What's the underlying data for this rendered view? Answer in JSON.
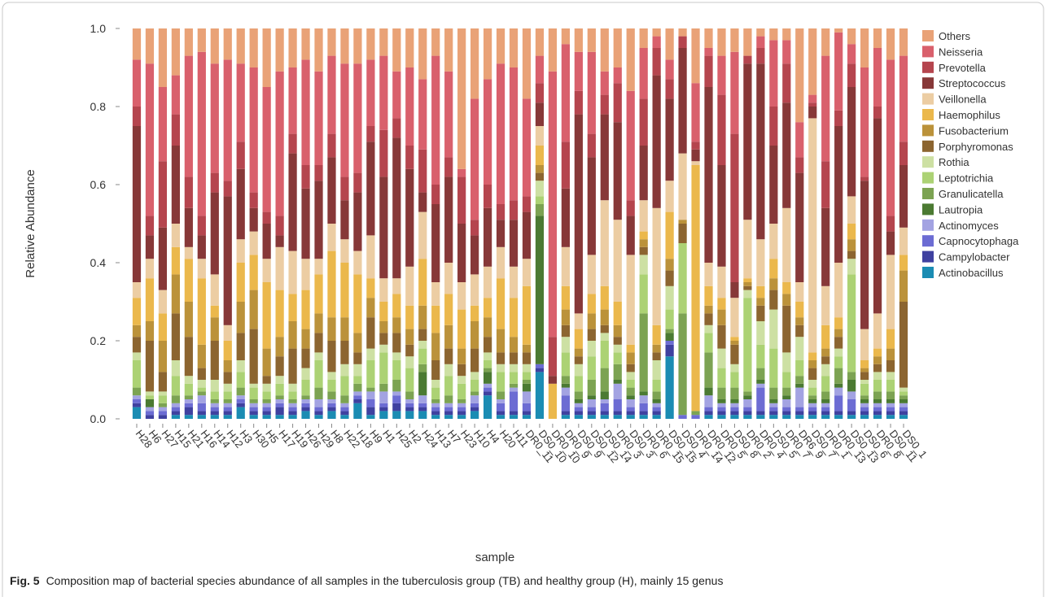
{
  "chart_data": {
    "type": "stacked_bar",
    "ylabel": "Relative Abundance",
    "xlabel": "sample",
    "figure_label": "Fig. 5",
    "caption": "Composition map of bacterial species abundance of all samples in the tuberculosis group (TB) and healthy group (H), mainly 15 genus",
    "ylim": [
      0,
      1
    ],
    "yticks": [
      {
        "value": 0,
        "label": "0.0"
      },
      {
        "value": 0.2,
        "label": "0.2"
      },
      {
        "value": 0.4,
        "label": "0.4"
      },
      {
        "value": 0.6,
        "label": "0.6"
      },
      {
        "value": 0.8,
        "label": "0.8"
      },
      {
        "value": 1,
        "label": "1.0"
      }
    ],
    "legend_position": "right",
    "categories": [
      "H28",
      "H6",
      "H27",
      "H15",
      "H21",
      "H16",
      "H14",
      "H12",
      "H3",
      "H30",
      "H5",
      "H17",
      "H19",
      "H26",
      "H29",
      "H8",
      "H22",
      "H18",
      "H9",
      "H1",
      "H25",
      "H2",
      "H24",
      "H13",
      "H7",
      "H23",
      "H10",
      "H4",
      "H20",
      "H11",
      "DR0_11",
      "DS0_10",
      "DR0_10",
      "DR0_9",
      "DS0_9",
      "DS0_12",
      "DS0_14",
      "DR0_3",
      "DS0_3",
      "DR0_6",
      "DR0_15",
      "DS0_15",
      "DS0_4",
      "DR0_14",
      "DR0_12",
      "DR0_5",
      "DS0_8",
      "DR0_2",
      "DR0_4",
      "DS0_5",
      "DR0_7",
      "DR6_9",
      "DS0_7",
      "DR0_1",
      "DR0_13",
      "DS0_13",
      "DS0_6",
      "DR0_8",
      "DS0_11",
      "DS0_1"
    ],
    "series": [
      {
        "name": "Others",
        "color": "#e9a277",
        "values": [
          0.08,
          0.09,
          0.15,
          0.12,
          0.07,
          0.06,
          0.09,
          0.08,
          0.09,
          0.1,
          0.15,
          0.11,
          0.1,
          0.08,
          0.11,
          0.07,
          0.09,
          0.09,
          0.08,
          0.07,
          0.11,
          0.1,
          0.13,
          0.07,
          0.11,
          0.36,
          0.18,
          0.13,
          0.09,
          0.1,
          0.18,
          0.07,
          0.11,
          0.04,
          0.06,
          0.06,
          0.11,
          0.1,
          0.16,
          0.05,
          0.02,
          0.08,
          0.02,
          0.14,
          0.05,
          0.07,
          0.06,
          0.07,
          0.02,
          0.03,
          0.03,
          0.24,
          0.17,
          0.07,
          0.01,
          0.04,
          0.1,
          0.05,
          0.08,
          0.07
        ]
      },
      {
        "name": "Neisseria",
        "color": "#d9606c",
        "values": [
          0.12,
          0.39,
          0.19,
          0.1,
          0.31,
          0.42,
          0.28,
          0.31,
          0.2,
          0.32,
          0.32,
          0.37,
          0.17,
          0.27,
          0.24,
          0.2,
          0.29,
          0.28,
          0.17,
          0.19,
          0.12,
          0.2,
          0.18,
          0.33,
          0.22,
          0.02,
          0.31,
          0.27,
          0.36,
          0.34,
          0.25,
          0.07,
          0.68,
          0.25,
          0.1,
          0.21,
          0.06,
          0.04,
          0.28,
          0.13,
          0.03,
          0.05,
          0,
          0.15,
          0.02,
          0.1,
          0.21,
          0,
          0.03,
          0.17,
          0.06,
          0.09,
          0.02,
          0.27,
          0.2,
          0.05,
          0.28,
          0.15,
          0.4,
          0.22
        ]
      },
      {
        "name": "Prevotella",
        "color": "#b5454e",
        "values": [
          0.05,
          0.05,
          0.17,
          0.08,
          0.08,
          0.05,
          0.05,
          0.04,
          0.07,
          0.04,
          0.03,
          0.05,
          0.05,
          0.06,
          0.04,
          0.06,
          0.06,
          0.05,
          0.04,
          0.12,
          0.05,
          0.06,
          0.11,
          0.05,
          0.05,
          0.12,
          0.04,
          0.06,
          0.04,
          0.05,
          0.04,
          0.05,
          0.1,
          0.12,
          0.06,
          0.06,
          0.05,
          0.1,
          0.04,
          0.12,
          0.07,
          0.05,
          0.03,
          0.02,
          0.08,
          0.18,
          0.38,
          0.02,
          0.04,
          0.1,
          0.1,
          0.04,
          0.01,
          0.12,
          0.04,
          0.06,
          0.01,
          0.03,
          0.04,
          0.06
        ]
      },
      {
        "name": "Streptococcus",
        "color": "#873838",
        "values": [
          0.4,
          0.06,
          0.16,
          0.2,
          0.1,
          0.06,
          0.21,
          0.33,
          0.18,
          0.06,
          0.09,
          0.03,
          0.25,
          0.18,
          0.2,
          0.17,
          0.1,
          0.15,
          0.24,
          0.26,
          0.36,
          0.25,
          0.05,
          0.2,
          0.22,
          0.15,
          0.1,
          0.15,
          0.07,
          0.12,
          0.12,
          0.06,
          0.02,
          0.15,
          0.51,
          0.25,
          0.22,
          0.25,
          0.1,
          0.14,
          0.34,
          0.21,
          0.27,
          0.03,
          0.45,
          0.26,
          0.04,
          0.4,
          0.45,
          0.2,
          0.27,
          0.28,
          0.03,
          0.2,
          0.35,
          0.28,
          0.38,
          0.5,
          0.06,
          0.16
        ]
      },
      {
        "name": "Veillonella",
        "color": "#eccda3",
        "values": [
          0.04,
          0.05,
          0.06,
          0.06,
          0.03,
          0.05,
          0.08,
          0.04,
          0.06,
          0.06,
          0.06,
          0.11,
          0.11,
          0.08,
          0.04,
          0.07,
          0.06,
          0.06,
          0.11,
          0.06,
          0.04,
          0.1,
          0.12,
          0.06,
          0.08,
          0.07,
          0.08,
          0.08,
          0.08,
          0.08,
          0.07,
          0.05,
          0,
          0.1,
          0.04,
          0.1,
          0.22,
          0.21,
          0.23,
          0.08,
          0.3,
          0.08,
          0.17,
          0.01,
          0.06,
          0.08,
          0.1,
          0.15,
          0.12,
          0.09,
          0.19,
          0.05,
          0.6,
          0.1,
          0.14,
          0.07,
          0.08,
          0.09,
          0.19,
          0.07
        ]
      },
      {
        "name": "Haemophilus",
        "color": "#ebb84c",
        "values": [
          0.07,
          0.11,
          0.07,
          0.07,
          0.11,
          0.17,
          0.03,
          0.05,
          0.1,
          0.09,
          0.17,
          0.12,
          0.07,
          0.1,
          0.1,
          0.17,
          0.14,
          0.15,
          0.05,
          0.05,
          0.06,
          0.06,
          0.12,
          0.07,
          0.08,
          0.1,
          0.04,
          0.05,
          0.13,
          0.1,
          0.15,
          0.05,
          0.09,
          0.06,
          0.05,
          0.05,
          0.06,
          0.06,
          0.02,
          0.02,
          0.05,
          0.12,
          0,
          0.63,
          0.05,
          0.03,
          0.01,
          0.01,
          0.03,
          0.05,
          0.03,
          0.04,
          0.02,
          0.06,
          0.03,
          0.04,
          0.02,
          0.02,
          0.05,
          0.04
        ]
      },
      {
        "name": "Fusobacterium",
        "color": "#bb923a",
        "values": [
          0.03,
          0.05,
          0.08,
          0.1,
          0.09,
          0.06,
          0.06,
          0.03,
          0.08,
          0.1,
          0.07,
          0.05,
          0.07,
          0.05,
          0.05,
          0.06,
          0.06,
          0.05,
          0.05,
          0.03,
          0.04,
          0.04,
          0.06,
          0.07,
          0.06,
          0.04,
          0.07,
          0.05,
          0.06,
          0.04,
          0.02,
          0.02,
          0,
          0.04,
          0.02,
          0.04,
          0.04,
          0.03,
          0.03,
          0.02,
          0.02,
          0.03,
          0.01,
          0,
          0.02,
          0.04,
          0.01,
          0.01,
          0.02,
          0.03,
          0.03,
          0.02,
          0.02,
          0.02,
          0.02,
          0.03,
          0.01,
          0.02,
          0.03,
          0.08
        ]
      },
      {
        "name": "Porphyromonas",
        "color": "#8c6530",
        "values": [
          0.04,
          0.13,
          0.05,
          0.12,
          0.1,
          0.03,
          0.1,
          0.03,
          0.07,
          0.14,
          0.02,
          0.05,
          0.09,
          0.05,
          0.05,
          0.08,
          0.06,
          0.03,
          0.08,
          0.03,
          0.05,
          0.03,
          0.03,
          0.05,
          0.04,
          0.03,
          0.06,
          0.04,
          0.03,
          0.03,
          0.03,
          0.02,
          0,
          0.03,
          0.02,
          0.03,
          0.02,
          0.02,
          0.02,
          0.02,
          0.02,
          0.04,
          0.05,
          0,
          0.03,
          0.06,
          0.05,
          0.01,
          0.04,
          0.05,
          0.12,
          0.03,
          0.03,
          0.02,
          0.03,
          0.02,
          0.02,
          0.02,
          0.03,
          0.22
        ]
      },
      {
        "name": "Rothia",
        "color": "#cde0a3",
        "values": [
          0.02,
          0.01,
          0.01,
          0.04,
          0.02,
          0.02,
          0.03,
          0.02,
          0.03,
          0.01,
          0.02,
          0.02,
          0.02,
          0.03,
          0.02,
          0.02,
          0.03,
          0.03,
          0.03,
          0.02,
          0.02,
          0.03,
          0.02,
          0.02,
          0.03,
          0.02,
          0.02,
          0.02,
          0.02,
          0.02,
          0.02,
          0.04,
          0,
          0.04,
          0.03,
          0.04,
          0.02,
          0.02,
          0.02,
          0.05,
          0.05,
          0.06,
          0,
          0,
          0.02,
          0.05,
          0.02,
          0.02,
          0.06,
          0.1,
          0.05,
          0.06,
          0.02,
          0.03,
          0.02,
          0.04,
          0.01,
          0.02,
          0.02,
          0.01
        ]
      },
      {
        "name": "Leptotrichia",
        "color": "#acd274",
        "values": [
          0.07,
          0.01,
          0.02,
          0.05,
          0.03,
          0.01,
          0.02,
          0.02,
          0.04,
          0.03,
          0.02,
          0.03,
          0.02,
          0.04,
          0.07,
          0.03,
          0.05,
          0.02,
          0.07,
          0.08,
          0.05,
          0.06,
          0.04,
          0.03,
          0.05,
          0.04,
          0.03,
          0.02,
          0.05,
          0.03,
          0.02,
          0.02,
          0,
          0.06,
          0.04,
          0.06,
          0.07,
          0.03,
          0.02,
          0.1,
          0.03,
          0.05,
          0.18,
          0,
          0.05,
          0.05,
          0.04,
          0.24,
          0.06,
          0.1,
          0.04,
          0.04,
          0.02,
          0.04,
          0.03,
          0.25,
          0.03,
          0.03,
          0.03,
          0.01
        ]
      },
      {
        "name": "Granulicatella",
        "color": "#7ca352",
        "values": [
          0.02,
          0,
          0.01,
          0.02,
          0.01,
          0.01,
          0.01,
          0.01,
          0.02,
          0.01,
          0.01,
          0.01,
          0.01,
          0.01,
          0.03,
          0.02,
          0.02,
          0.02,
          0.01,
          0.02,
          0.03,
          0.02,
          0.02,
          0.01,
          0.02,
          0.01,
          0.01,
          0.01,
          0.02,
          0.01,
          0.01,
          0.03,
          0,
          0.02,
          0.02,
          0.04,
          0.06,
          0.04,
          0.02,
          0.2,
          0.02,
          0.01,
          0.26,
          0.01,
          0.09,
          0.03,
          0.03,
          0.01,
          0.03,
          0.03,
          0.02,
          0.02,
          0.01,
          0.02,
          0.04,
          0.02,
          0.01,
          0.02,
          0.02,
          0.01
        ]
      },
      {
        "name": "Lautropia",
        "color": "#4b7a32",
        "values": [
          0,
          0.02,
          0,
          0,
          0,
          0,
          0,
          0,
          0,
          0,
          0,
          0,
          0,
          0,
          0,
          0,
          0,
          0,
          0,
          0,
          0,
          0,
          0.06,
          0,
          0,
          0,
          0,
          0.03,
          0,
          0,
          0.02,
          0.38,
          0,
          0.01,
          0.01,
          0.01,
          0.02,
          0.01,
          0.01,
          0.01,
          0.01,
          0.02,
          0,
          0,
          0.02,
          0.01,
          0.01,
          0.01,
          0.01,
          0.01,
          0.01,
          0.01,
          0.01,
          0.01,
          0.01,
          0.03,
          0.01,
          0.01,
          0.01,
          0.01
        ]
      },
      {
        "name": "Actinomyces",
        "color": "#a3a3e2",
        "values": [
          0.01,
          0.01,
          0.01,
          0.01,
          0.01,
          0.02,
          0.01,
          0.01,
          0.01,
          0.01,
          0.01,
          0.01,
          0.01,
          0.01,
          0.02,
          0.01,
          0.01,
          0.01,
          0.02,
          0.03,
          0.01,
          0.01,
          0.02,
          0.01,
          0.01,
          0.01,
          0.02,
          0.01,
          0.01,
          0.01,
          0.03,
          0,
          0,
          0.02,
          0.01,
          0.02,
          0.01,
          0.04,
          0.02,
          0.02,
          0.01,
          0,
          0,
          0,
          0.03,
          0.01,
          0.01,
          0.02,
          0.01,
          0.01,
          0.02,
          0.05,
          0.01,
          0.01,
          0.02,
          0.02,
          0.01,
          0.01,
          0.01,
          0.01
        ]
      },
      {
        "name": "Capnocytophaga",
        "color": "#6c6cd3",
        "values": [
          0.01,
          0.01,
          0.01,
          0.01,
          0.01,
          0.02,
          0.01,
          0.01,
          0.01,
          0.01,
          0.01,
          0.01,
          0.01,
          0.01,
          0.01,
          0.01,
          0.01,
          0.01,
          0.02,
          0.01,
          0.02,
          0.01,
          0.01,
          0.01,
          0.01,
          0.01,
          0.01,
          0.01,
          0.02,
          0.05,
          0.02,
          0.01,
          0,
          0.04,
          0.01,
          0.01,
          0.02,
          0.03,
          0.01,
          0.02,
          0.01,
          0.01,
          0.01,
          0.01,
          0.01,
          0.01,
          0.01,
          0.01,
          0.06,
          0.01,
          0.01,
          0.01,
          0.01,
          0.01,
          0.04,
          0.03,
          0.01,
          0.01,
          0.01,
          0.01
        ]
      },
      {
        "name": "Campylobacter",
        "color": "#3f41a0",
        "values": [
          0.01,
          0.01,
          0.01,
          0.01,
          0.02,
          0.01,
          0.01,
          0.01,
          0.01,
          0.01,
          0.01,
          0.02,
          0.01,
          0.01,
          0.01,
          0.01,
          0.01,
          0.01,
          0.02,
          0.01,
          0.02,
          0.01,
          0.01,
          0.01,
          0.01,
          0.01,
          0.01,
          0.01,
          0.01,
          0.01,
          0.01,
          0.01,
          0,
          0.01,
          0.01,
          0.01,
          0.01,
          0.01,
          0.01,
          0.01,
          0.01,
          0.03,
          0,
          0,
          0.01,
          0.01,
          0.01,
          0.01,
          0.01,
          0.01,
          0.01,
          0.01,
          0.01,
          0.01,
          0.01,
          0.01,
          0.01,
          0.01,
          0.01,
          0.01
        ]
      },
      {
        "name": "Actinobacillus",
        "color": "#1b8cb3",
        "values": [
          0.03,
          0,
          0,
          0.01,
          0.01,
          0.01,
          0.01,
          0.01,
          0.03,
          0.01,
          0.01,
          0.01,
          0.01,
          0.02,
          0.01,
          0.02,
          0.01,
          0.04,
          0.01,
          0.02,
          0.02,
          0.02,
          0.02,
          0.01,
          0.01,
          0.01,
          0.02,
          0.06,
          0.01,
          0.01,
          0.01,
          0.12,
          0,
          0.01,
          0.01,
          0.01,
          0.01,
          0.01,
          0.01,
          0.01,
          0.01,
          0.16,
          0,
          0,
          0.01,
          0.01,
          0.01,
          0.01,
          0.01,
          0.01,
          0.01,
          0.01,
          0.01,
          0.01,
          0.01,
          0.01,
          0.01,
          0.01,
          0.01,
          0.01
        ]
      }
    ]
  }
}
